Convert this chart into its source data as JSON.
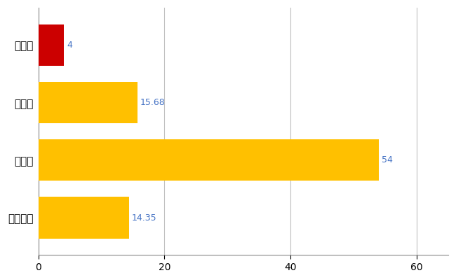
{
  "categories": [
    "平生町",
    "県平均",
    "県最大",
    "全国平均"
  ],
  "values": [
    4,
    15.68,
    54,
    14.35
  ],
  "bar_colors": [
    "#CC0000",
    "#FFC000",
    "#FFC000",
    "#FFC000"
  ],
  "value_labels": [
    "4",
    "15.68",
    "54",
    "14.35"
  ],
  "value_label_color": "#4472C4",
  "xlim": [
    0,
    65
  ],
  "xticks": [
    0,
    20,
    40,
    60
  ],
  "background_color": "#FFFFFF",
  "grid_color": "#C0C0C0",
  "bar_height": 0.72,
  "figsize": [
    6.5,
    4.0
  ],
  "dpi": 100
}
